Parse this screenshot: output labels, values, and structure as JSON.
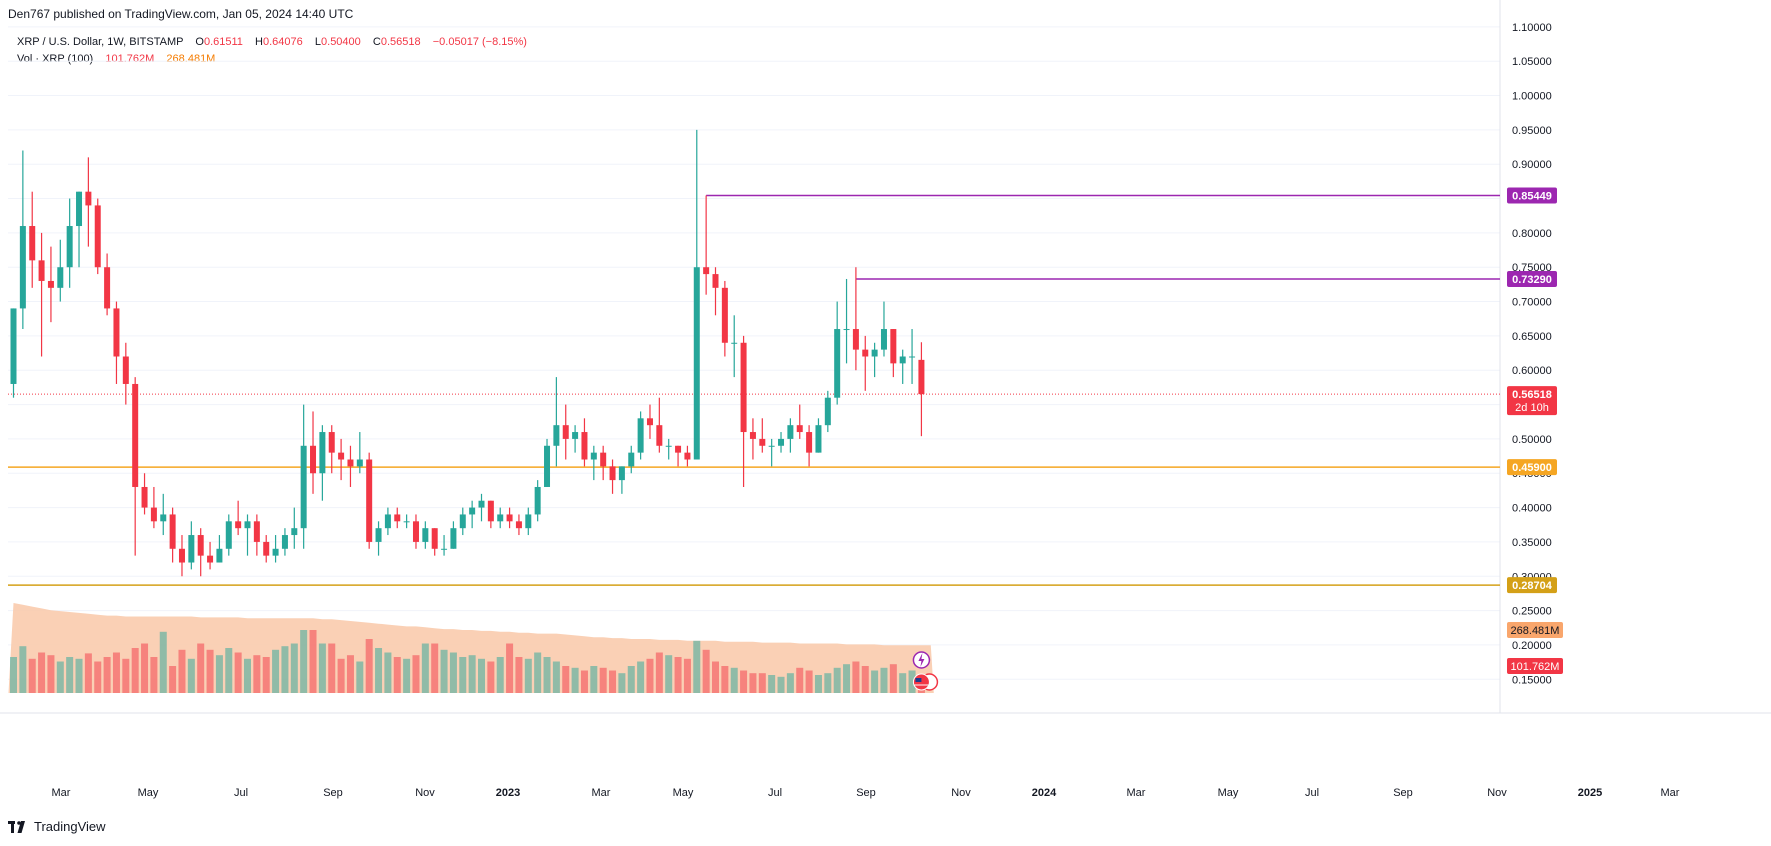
{
  "publisher": "Den767 published on TradingView.com, Jan 05, 2024 14:40 UTC",
  "legend": {
    "symbol": "XRP / U.S. Dollar, 1W, BITSTAMP",
    "o_label": "O",
    "o": "0.61511",
    "h_label": "H",
    "h": "0.64076",
    "l_label": "L",
    "l": "0.50400",
    "c_label": "C",
    "c": "0.56518",
    "change": "−0.05017 (−8.15%)",
    "vol_label": "Vol · XRP (100)",
    "vol": "101.762M",
    "vol_ma": "268.481M"
  },
  "footer": {
    "brand": "TradingView"
  },
  "colors": {
    "up": "#26a69a",
    "down": "#f23645",
    "vol_up": "#9fd1cb",
    "vol_down": "#f7a3a8",
    "vol_ma_fill": "#f9c8a8",
    "purple": "#9c27b0",
    "orange": "#f5a623",
    "dark_orange": "#d4a017",
    "last": "#f23645"
  },
  "chart_data": {
    "type": "candlestick",
    "symbol": "XRP / U.S. Dollar",
    "interval": "1W",
    "exchange": "BITSTAMP",
    "price_axis": {
      "range": [
        0.13,
        1.11
      ],
      "ticks": [
        "0.15000",
        "0.20000",
        "0.25000",
        "0.30000",
        "0.35000",
        "0.40000",
        "0.45000",
        "0.50000",
        "0.55000",
        "0.60000",
        "0.65000",
        "0.70000",
        "0.75000",
        "0.80000",
        "0.85000",
        "0.90000",
        "0.95000",
        "1.00000",
        "1.05000",
        "1.10000"
      ]
    },
    "time_axis": {
      "labels": [
        "Mar",
        "May",
        "Jul",
        "Sep",
        "Nov",
        "2023",
        "Mar",
        "May",
        "Jul",
        "Sep",
        "Nov",
        "2024",
        "Mar",
        "May",
        "Jul",
        "Sep",
        "Nov",
        "2025",
        "Mar"
      ],
      "bold": [
        "2023",
        "2024",
        "2025"
      ]
    },
    "horizontal_lines": [
      {
        "price": 0.85449,
        "label": "0.85449",
        "color": "#9c27b0",
        "from": "2023-07-13"
      },
      {
        "price": 0.7329,
        "label": "0.73290",
        "color": "#9c27b0",
        "from": "2023-11-02"
      },
      {
        "price": 0.459,
        "label": "0.45900",
        "color": "#f5a623",
        "from": "start"
      },
      {
        "price": 0.28704,
        "label": "0.28704",
        "color": "#d4a017",
        "from": "start"
      }
    ],
    "last_price": {
      "price": 0.56518,
      "label": "0.56518",
      "countdown": "2d 10h"
    },
    "volume_tags": {
      "vol": "101.762M",
      "vol_ma": "268.481M"
    },
    "candles": [
      {
        "o": 0.58,
        "h": 0.69,
        "l": 0.56,
        "c": 0.69
      },
      {
        "o": 0.69,
        "h": 0.92,
        "l": 0.66,
        "c": 0.81
      },
      {
        "o": 0.81,
        "h": 0.86,
        "l": 0.72,
        "c": 0.76
      },
      {
        "o": 0.76,
        "h": 0.8,
        "l": 0.62,
        "c": 0.73
      },
      {
        "o": 0.73,
        "h": 0.78,
        "l": 0.67,
        "c": 0.72
      },
      {
        "o": 0.72,
        "h": 0.79,
        "l": 0.7,
        "c": 0.75
      },
      {
        "o": 0.75,
        "h": 0.85,
        "l": 0.72,
        "c": 0.81
      },
      {
        "o": 0.81,
        "h": 0.86,
        "l": 0.75,
        "c": 0.86
      },
      {
        "o": 0.86,
        "h": 0.91,
        "l": 0.78,
        "c": 0.84
      },
      {
        "o": 0.84,
        "h": 0.85,
        "l": 0.74,
        "c": 0.75
      },
      {
        "o": 0.75,
        "h": 0.77,
        "l": 0.68,
        "c": 0.69
      },
      {
        "o": 0.69,
        "h": 0.7,
        "l": 0.58,
        "c": 0.62
      },
      {
        "o": 0.62,
        "h": 0.64,
        "l": 0.55,
        "c": 0.58
      },
      {
        "o": 0.58,
        "h": 0.59,
        "l": 0.33,
        "c": 0.43
      },
      {
        "o": 0.43,
        "h": 0.45,
        "l": 0.39,
        "c": 0.4
      },
      {
        "o": 0.4,
        "h": 0.43,
        "l": 0.37,
        "c": 0.38
      },
      {
        "o": 0.38,
        "h": 0.42,
        "l": 0.36,
        "c": 0.39
      },
      {
        "o": 0.39,
        "h": 0.4,
        "l": 0.32,
        "c": 0.34
      },
      {
        "o": 0.34,
        "h": 0.36,
        "l": 0.3,
        "c": 0.32
      },
      {
        "o": 0.32,
        "h": 0.38,
        "l": 0.31,
        "c": 0.36
      },
      {
        "o": 0.36,
        "h": 0.37,
        "l": 0.3,
        "c": 0.33
      },
      {
        "o": 0.33,
        "h": 0.35,
        "l": 0.31,
        "c": 0.32
      },
      {
        "o": 0.32,
        "h": 0.36,
        "l": 0.32,
        "c": 0.34
      },
      {
        "o": 0.34,
        "h": 0.39,
        "l": 0.33,
        "c": 0.38
      },
      {
        "o": 0.38,
        "h": 0.41,
        "l": 0.36,
        "c": 0.37
      },
      {
        "o": 0.37,
        "h": 0.39,
        "l": 0.33,
        "c": 0.38
      },
      {
        "o": 0.38,
        "h": 0.39,
        "l": 0.33,
        "c": 0.35
      },
      {
        "o": 0.35,
        "h": 0.36,
        "l": 0.32,
        "c": 0.33
      },
      {
        "o": 0.33,
        "h": 0.36,
        "l": 0.32,
        "c": 0.34
      },
      {
        "o": 0.34,
        "h": 0.37,
        "l": 0.33,
        "c": 0.36
      },
      {
        "o": 0.36,
        "h": 0.4,
        "l": 0.34,
        "c": 0.37
      },
      {
        "o": 0.37,
        "h": 0.55,
        "l": 0.34,
        "c": 0.49
      },
      {
        "o": 0.49,
        "h": 0.54,
        "l": 0.42,
        "c": 0.45
      },
      {
        "o": 0.45,
        "h": 0.52,
        "l": 0.41,
        "c": 0.51
      },
      {
        "o": 0.51,
        "h": 0.52,
        "l": 0.45,
        "c": 0.48
      },
      {
        "o": 0.48,
        "h": 0.5,
        "l": 0.44,
        "c": 0.47
      },
      {
        "o": 0.47,
        "h": 0.49,
        "l": 0.43,
        "c": 0.46
      },
      {
        "o": 0.46,
        "h": 0.51,
        "l": 0.45,
        "c": 0.47
      },
      {
        "o": 0.47,
        "h": 0.48,
        "l": 0.34,
        "c": 0.35
      },
      {
        "o": 0.35,
        "h": 0.38,
        "l": 0.33,
        "c": 0.37
      },
      {
        "o": 0.37,
        "h": 0.4,
        "l": 0.36,
        "c": 0.39
      },
      {
        "o": 0.39,
        "h": 0.4,
        "l": 0.37,
        "c": 0.38
      },
      {
        "o": 0.38,
        "h": 0.39,
        "l": 0.37,
        "c": 0.38
      },
      {
        "o": 0.38,
        "h": 0.39,
        "l": 0.34,
        "c": 0.35
      },
      {
        "o": 0.35,
        "h": 0.38,
        "l": 0.34,
        "c": 0.37
      },
      {
        "o": 0.37,
        "h": 0.37,
        "l": 0.33,
        "c": 0.34
      },
      {
        "o": 0.34,
        "h": 0.36,
        "l": 0.33,
        "c": 0.34
      },
      {
        "o": 0.34,
        "h": 0.38,
        "l": 0.34,
        "c": 0.37
      },
      {
        "o": 0.37,
        "h": 0.4,
        "l": 0.36,
        "c": 0.39
      },
      {
        "o": 0.39,
        "h": 0.41,
        "l": 0.37,
        "c": 0.4
      },
      {
        "o": 0.4,
        "h": 0.42,
        "l": 0.38,
        "c": 0.41
      },
      {
        "o": 0.41,
        "h": 0.41,
        "l": 0.37,
        "c": 0.38
      },
      {
        "o": 0.38,
        "h": 0.4,
        "l": 0.37,
        "c": 0.39
      },
      {
        "o": 0.39,
        "h": 0.4,
        "l": 0.37,
        "c": 0.38
      },
      {
        "o": 0.38,
        "h": 0.39,
        "l": 0.36,
        "c": 0.37
      },
      {
        "o": 0.37,
        "h": 0.4,
        "l": 0.36,
        "c": 0.39
      },
      {
        "o": 0.39,
        "h": 0.44,
        "l": 0.38,
        "c": 0.43
      },
      {
        "o": 0.43,
        "h": 0.5,
        "l": 0.43,
        "c": 0.49
      },
      {
        "o": 0.49,
        "h": 0.59,
        "l": 0.46,
        "c": 0.52
      },
      {
        "o": 0.52,
        "h": 0.55,
        "l": 0.47,
        "c": 0.5
      },
      {
        "o": 0.5,
        "h": 0.52,
        "l": 0.48,
        "c": 0.51
      },
      {
        "o": 0.51,
        "h": 0.53,
        "l": 0.46,
        "c": 0.47
      },
      {
        "o": 0.47,
        "h": 0.49,
        "l": 0.44,
        "c": 0.48
      },
      {
        "o": 0.48,
        "h": 0.49,
        "l": 0.44,
        "c": 0.46
      },
      {
        "o": 0.46,
        "h": 0.47,
        "l": 0.42,
        "c": 0.44
      },
      {
        "o": 0.44,
        "h": 0.46,
        "l": 0.42,
        "c": 0.46
      },
      {
        "o": 0.46,
        "h": 0.49,
        "l": 0.45,
        "c": 0.48
      },
      {
        "o": 0.48,
        "h": 0.54,
        "l": 0.47,
        "c": 0.53
      },
      {
        "o": 0.53,
        "h": 0.55,
        "l": 0.5,
        "c": 0.52
      },
      {
        "o": 0.52,
        "h": 0.56,
        "l": 0.48,
        "c": 0.49
      },
      {
        "o": 0.49,
        "h": 0.5,
        "l": 0.47,
        "c": 0.49
      },
      {
        "o": 0.49,
        "h": 0.49,
        "l": 0.46,
        "c": 0.48
      },
      {
        "o": 0.48,
        "h": 0.49,
        "l": 0.46,
        "c": 0.47
      },
      {
        "o": 0.47,
        "h": 0.95,
        "l": 0.47,
        "c": 0.75
      },
      {
        "o": 0.75,
        "h": 0.85449,
        "l": 0.71,
        "c": 0.74
      },
      {
        "o": 0.74,
        "h": 0.75,
        "l": 0.68,
        "c": 0.72
      },
      {
        "o": 0.72,
        "h": 0.73,
        "l": 0.62,
        "c": 0.64
      },
      {
        "o": 0.64,
        "h": 0.68,
        "l": 0.59,
        "c": 0.64
      },
      {
        "o": 0.64,
        "h": 0.65,
        "l": 0.43,
        "c": 0.51
      },
      {
        "o": 0.51,
        "h": 0.53,
        "l": 0.47,
        "c": 0.5
      },
      {
        "o": 0.5,
        "h": 0.53,
        "l": 0.48,
        "c": 0.49
      },
      {
        "o": 0.49,
        "h": 0.5,
        "l": 0.46,
        "c": 0.49
      },
      {
        "o": 0.49,
        "h": 0.51,
        "l": 0.48,
        "c": 0.5
      },
      {
        "o": 0.5,
        "h": 0.53,
        "l": 0.48,
        "c": 0.52
      },
      {
        "o": 0.52,
        "h": 0.55,
        "l": 0.5,
        "c": 0.51
      },
      {
        "o": 0.51,
        "h": 0.52,
        "l": 0.46,
        "c": 0.48
      },
      {
        "o": 0.48,
        "h": 0.53,
        "l": 0.48,
        "c": 0.52
      },
      {
        "o": 0.52,
        "h": 0.57,
        "l": 0.51,
        "c": 0.56
      },
      {
        "o": 0.56,
        "h": 0.7,
        "l": 0.55,
        "c": 0.66
      },
      {
        "o": 0.66,
        "h": 0.7329,
        "l": 0.61,
        "c": 0.66
      },
      {
        "o": 0.66,
        "h": 0.75,
        "l": 0.6,
        "c": 0.63
      },
      {
        "o": 0.63,
        "h": 0.65,
        "l": 0.57,
        "c": 0.62
      },
      {
        "o": 0.62,
        "h": 0.64,
        "l": 0.59,
        "c": 0.63
      },
      {
        "o": 0.63,
        "h": 0.7,
        "l": 0.62,
        "c": 0.66
      },
      {
        "o": 0.66,
        "h": 0.66,
        "l": 0.59,
        "c": 0.61
      },
      {
        "o": 0.61,
        "h": 0.63,
        "l": 0.58,
        "c": 0.62
      },
      {
        "o": 0.62,
        "h": 0.66,
        "l": 0.58,
        "c": 0.62
      },
      {
        "o": 0.61511,
        "h": 0.64076,
        "l": 0.504,
        "c": 0.56518
      }
    ],
    "volume_max": 200,
    "volume": [
      40,
      52,
      38,
      45,
      42,
      35,
      40,
      38,
      44,
      35,
      40,
      45,
      38,
      50,
      55,
      40,
      68,
      30,
      48,
      38,
      55,
      48,
      42,
      50,
      45,
      38,
      42,
      40,
      48,
      52,
      55,
      70,
      70,
      55,
      55,
      38,
      42,
      35,
      60,
      50,
      45,
      40,
      38,
      42,
      55,
      55,
      48,
      45,
      40,
      42,
      38,
      35,
      40,
      55,
      40,
      38,
      45,
      40,
      35,
      30,
      28,
      25,
      30,
      28,
      25,
      22,
      30,
      35,
      38,
      45,
      42,
      40,
      38,
      58,
      48,
      35,
      30,
      28,
      25,
      22,
      22,
      20,
      18,
      22,
      28,
      25,
      20,
      22,
      28,
      32,
      35,
      30,
      25,
      28,
      32,
      22,
      25,
      20,
      18
    ],
    "volume_ma": [
      100,
      98,
      96,
      94,
      92,
      91,
      90,
      89,
      88,
      87,
      86,
      86,
      85,
      85,
      85,
      85,
      85,
      85,
      85,
      85,
      84,
      84,
      84,
      84,
      84,
      83,
      83,
      83,
      83,
      83,
      83,
      83,
      83,
      82,
      82,
      81,
      80,
      79,
      78,
      77,
      76,
      75,
      74,
      74,
      73,
      72,
      71,
      71,
      70,
      70,
      69,
      69,
      68,
      68,
      67,
      67,
      66,
      66,
      66,
      65,
      64,
      63,
      62,
      62,
      61,
      61,
      60,
      60,
      60,
      59,
      59,
      59,
      58,
      58,
      58,
      58,
      57,
      57,
      57,
      57,
      56,
      56,
      56,
      56,
      55,
      55,
      55,
      55,
      55,
      54,
      54,
      54,
      54,
      53,
      53,
      53,
      53,
      53,
      53
    ]
  }
}
